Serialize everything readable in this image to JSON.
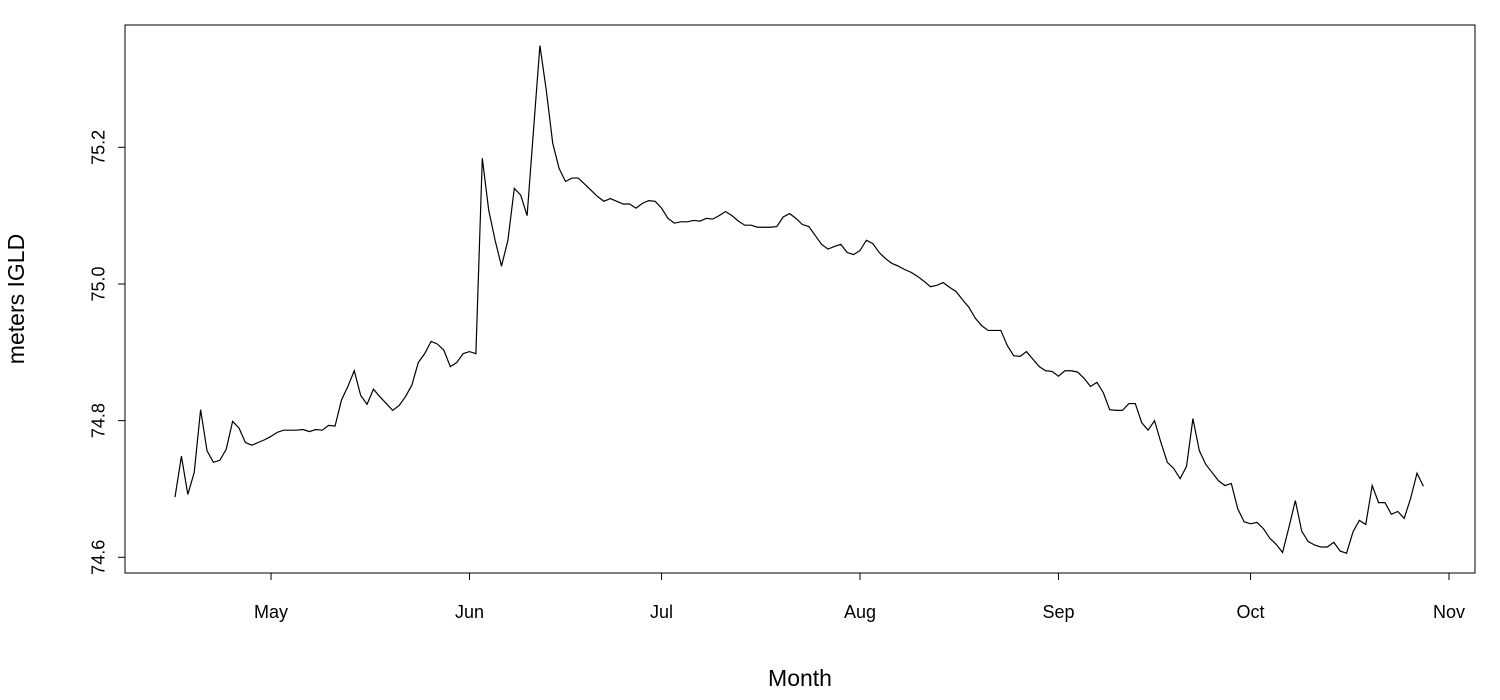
{
  "chart_data": {
    "type": "line",
    "x_label": "Month",
    "y_label": "meters IGLD",
    "color": "#000000",
    "categories": [
      null,
      null,
      null,
      null,
      null,
      null,
      null,
      null,
      null,
      null,
      null,
      null,
      null,
      null,
      null,
      "May",
      null,
      null,
      null,
      null,
      null,
      null,
      null,
      null,
      null,
      null,
      null,
      null,
      null,
      null,
      null,
      null,
      null,
      null,
      null,
      null,
      null,
      null,
      null,
      null,
      null,
      null,
      null,
      null,
      null,
      null,
      "Jun",
      null,
      null,
      null,
      null,
      null,
      null,
      null,
      null,
      null,
      null,
      null,
      null,
      null,
      null,
      null,
      null,
      null,
      null,
      null,
      null,
      null,
      null,
      null,
      null,
      null,
      null,
      null,
      null,
      null,
      "Jul",
      null,
      null,
      null,
      null,
      null,
      null,
      null,
      null,
      null,
      null,
      null,
      null,
      null,
      null,
      null,
      null,
      null,
      null,
      null,
      null,
      null,
      null,
      null,
      null,
      null,
      null,
      null,
      null,
      null,
      null,
      "Aug",
      null,
      null,
      null,
      null,
      null,
      null,
      null,
      null,
      null,
      null,
      null,
      null,
      null,
      null,
      null,
      null,
      null,
      null,
      null,
      null,
      null,
      null,
      null,
      null,
      null,
      null,
      null,
      null,
      null,
      null,
      "Sep",
      null,
      null,
      null,
      null,
      null,
      null,
      null,
      null,
      null,
      null,
      null,
      null,
      null,
      null,
      null,
      null,
      null,
      null,
      null,
      null,
      null,
      null,
      null,
      null,
      null,
      null,
      null,
      null,
      null,
      "Oct",
      null,
      null,
      null,
      null,
      null,
      null,
      null,
      null,
      null,
      null,
      null,
      null,
      null,
      null,
      null,
      null,
      null,
      null,
      null,
      null,
      null,
      null,
      null,
      null,
      null,
      null,
      null,
      null,
      null,
      null,
      "Nov"
    ],
    "values": [
      74.688,
      74.748,
      74.692,
      74.724,
      74.816,
      74.756,
      74.739,
      74.742,
      74.758,
      74.799,
      74.789,
      74.768,
      74.764,
      74.768,
      74.772,
      74.777,
      74.783,
      74.786,
      74.786,
      74.786,
      74.787,
      74.784,
      74.787,
      74.786,
      74.793,
      74.792,
      74.83,
      74.85,
      74.873,
      74.837,
      74.824,
      74.846,
      74.835,
      74.825,
      74.815,
      74.822,
      74.835,
      74.852,
      74.885,
      74.898,
      74.916,
      74.912,
      74.903,
      74.879,
      74.885,
      74.898,
      74.901,
      74.898,
      75.184,
      75.108,
      75.064,
      75.026,
      75.064,
      75.14,
      75.13,
      75.1,
      75.225,
      75.349,
      75.283,
      75.206,
      75.169,
      75.15,
      75.155,
      75.155,
      75.146,
      75.137,
      75.128,
      75.121,
      75.125,
      75.121,
      75.117,
      75.117,
      75.111,
      75.118,
      75.122,
      75.121,
      75.111,
      75.096,
      75.089,
      75.091,
      75.091,
      75.093,
      75.092,
      75.096,
      75.095,
      75.1,
      75.106,
      75.1,
      75.092,
      75.086,
      75.086,
      75.083,
      75.083,
      75.083,
      75.084,
      75.098,
      75.103,
      75.096,
      75.087,
      75.084,
      75.071,
      75.058,
      75.051,
      75.055,
      75.058,
      75.046,
      75.043,
      75.049,
      75.064,
      75.059,
      75.046,
      75.037,
      75.03,
      75.026,
      75.021,
      75.017,
      75.011,
      75.004,
      74.996,
      74.998,
      75.002,
      74.995,
      74.989,
      74.977,
      74.966,
      74.95,
      74.939,
      74.932,
      74.932,
      74.932,
      74.91,
      74.895,
      74.894,
      74.901,
      74.89,
      74.879,
      74.873,
      74.872,
      74.865,
      74.873,
      74.873,
      74.871,
      74.862,
      74.85,
      74.856,
      74.841,
      74.816,
      74.815,
      74.815,
      74.825,
      74.825,
      74.797,
      74.786,
      74.8,
      74.768,
      74.739,
      74.73,
      74.715,
      74.733,
      74.803,
      74.756,
      74.736,
      74.724,
      74.712,
      74.705,
      74.708,
      74.671,
      74.652,
      74.649,
      74.651,
      74.642,
      74.628,
      74.619,
      74.607,
      74.644,
      74.683,
      74.638,
      74.623,
      74.618,
      74.615,
      74.615,
      74.622,
      74.609,
      74.606,
      74.637,
      74.654,
      74.648,
      74.705,
      74.68,
      74.68,
      74.663,
      74.667,
      74.657,
      74.686,
      74.723,
      74.704,
      null,
      null,
      null,
      null
    ],
    "ylim": [
      74.577,
      75.379
    ],
    "yticks": [
      74.6,
      74.8,
      {
        "value": 75,
        "label": "75.0"
      },
      75.2
    ]
  }
}
